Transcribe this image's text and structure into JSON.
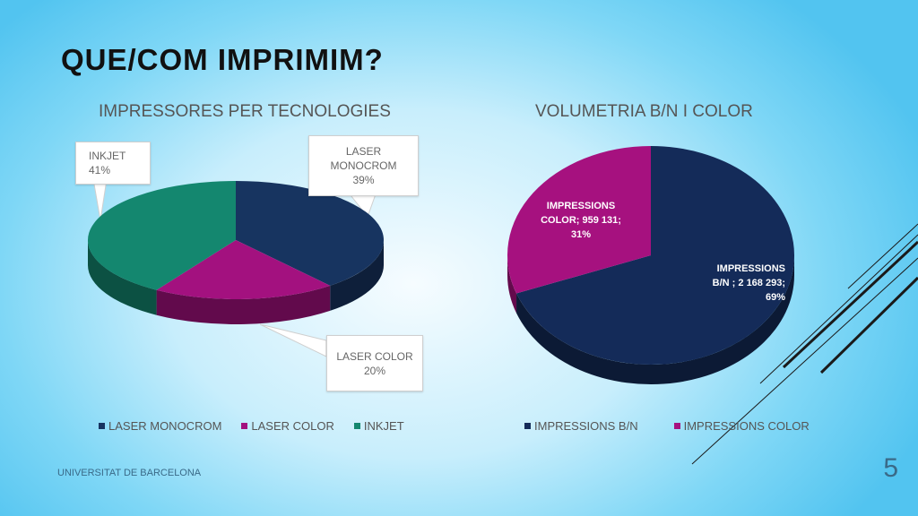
{
  "slide": {
    "title": "QUE/COM IMPRIMIM?",
    "footer": "UNIVERSITAT DE BARCELONA",
    "page_number": "5"
  },
  "colors": {
    "laser_monocrom": "#173460",
    "laser_color": "#a3117f",
    "inkjet": "#14876f",
    "impressions_bn": "#142b59",
    "impressions_color": "#a6117f"
  },
  "chart_data": [
    {
      "type": "pie",
      "title": "IMPRESSORES PER TECNOLOGIES",
      "categories": [
        "LASER MONOCROM",
        "LASER COLOR",
        "INKJET"
      ],
      "values": [
        39,
        20,
        41
      ],
      "unit": "%",
      "labels": [
        {
          "name": "LASER MONOCROM",
          "value": "39%"
        },
        {
          "name": "LASER COLOR",
          "value": "20%"
        },
        {
          "name": "INKJET",
          "value": "41%"
        }
      ],
      "legend": [
        "LASER MONOCROM",
        "LASER COLOR",
        "INKJET"
      ],
      "legend_position": "bottom"
    },
    {
      "type": "pie",
      "title": "VOLUMETRIA B/N I COLOR",
      "categories": [
        "IMPRESSIONS B/N",
        "IMPRESSIONS COLOR"
      ],
      "values": [
        2168293,
        959131
      ],
      "percentages": [
        69,
        31
      ],
      "labels": [
        {
          "text": "IMPRESSIONS B/N ; 2 168 293; 69%"
        },
        {
          "text": "IMPRESSIONS COLOR; 959 131; 31%"
        }
      ],
      "legend": [
        "IMPRESSIONS B/N",
        "IMPRESSIONS COLOR"
      ],
      "legend_position": "bottom"
    }
  ]
}
